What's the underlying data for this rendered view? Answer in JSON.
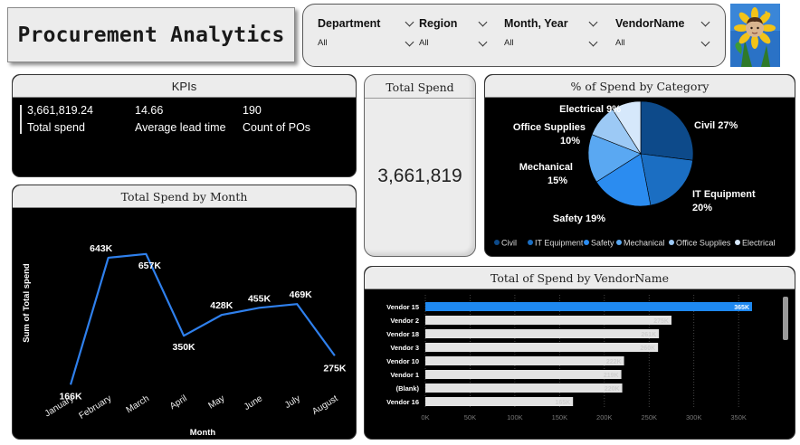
{
  "title": "Procurement Analytics",
  "slicers": [
    {
      "label": "Department",
      "value": "All"
    },
    {
      "label": "Region",
      "value": "All"
    },
    {
      "label": "Month, Year",
      "value": "All"
    },
    {
      "label": "VendorName",
      "value": "All"
    }
  ],
  "kpi_panel": {
    "title": "KPIs",
    "items": [
      {
        "value": "3,661,819.24",
        "label": "Total spend"
      },
      {
        "value": "14.66",
        "label": "Average lead time"
      },
      {
        "value": "190",
        "label": "Count of POs"
      }
    ]
  },
  "total_spend_card": {
    "title": "Total Spend",
    "value": "3,661,819"
  },
  "colors": {
    "civil": "#0d4a8a",
    "it_equipment": "#1b6ec2",
    "safety": "#2b8cf0",
    "mechanical": "#5aa8f2",
    "office_supplies": "#9cc9f5",
    "electrical": "#d6e8fb",
    "line": "#2f80ed",
    "bar_highlight": "#1e88f0",
    "bar_default": "#e3e3e3"
  },
  "chart_data": [
    {
      "type": "pie",
      "title": "% of Spend by Category",
      "slices": [
        {
          "name": "Civil",
          "percent": 27,
          "label": "Civil 27%"
        },
        {
          "name": "IT Equipment",
          "percent": 20,
          "label": "IT Equipment 20%"
        },
        {
          "name": "Safety",
          "percent": 19,
          "label": "Safety 19%"
        },
        {
          "name": "Mechanical",
          "percent": 15,
          "label": "Mechanical 15%"
        },
        {
          "name": "Office Supplies",
          "percent": 10,
          "label": "Office Supplies 10%"
        },
        {
          "name": "Electrical",
          "percent": 9,
          "label": "Electrical 9%"
        }
      ],
      "legend": [
        "Civil",
        "IT Equipment",
        "Safety",
        "Mechanical",
        "Office Supplies",
        "Electrical"
      ],
      "legend_position": "bottom"
    },
    {
      "type": "line",
      "title": "Total Spend by Month",
      "xlabel": "Month",
      "ylabel": "Sum of Total spend",
      "categories": [
        "January",
        "February",
        "March",
        "April",
        "May",
        "June",
        "July",
        "August"
      ],
      "values": [
        166000,
        643000,
        657000,
        350000,
        428000,
        455000,
        469000,
        275000
      ],
      "data_labels": [
        "166K",
        "643K",
        "657K",
        "350K",
        "428K",
        "455K",
        "469K",
        "275K"
      ],
      "grid": false
    },
    {
      "type": "bar",
      "orientation": "horizontal",
      "title": "Total of Spend by VendorName",
      "categories": [
        "Vendor 15",
        "Vendor 2",
        "Vendor 18",
        "Vendor 3",
        "Vendor 10",
        "Vendor 1",
        "(Blank)",
        "Vendor 16"
      ],
      "values": [
        365000,
        275000,
        261000,
        260000,
        222000,
        219000,
        220000,
        165000
      ],
      "data_labels": [
        "365K",
        "275K",
        "261K",
        "260K",
        "222K",
        "219K",
        "220K",
        "165K"
      ],
      "xticks": [
        "0K",
        "50K",
        "100K",
        "150K",
        "200K",
        "250K",
        "300K",
        "350K"
      ],
      "xlim": [
        0,
        365000
      ],
      "highlight": "Vendor 15",
      "grid": true
    }
  ]
}
